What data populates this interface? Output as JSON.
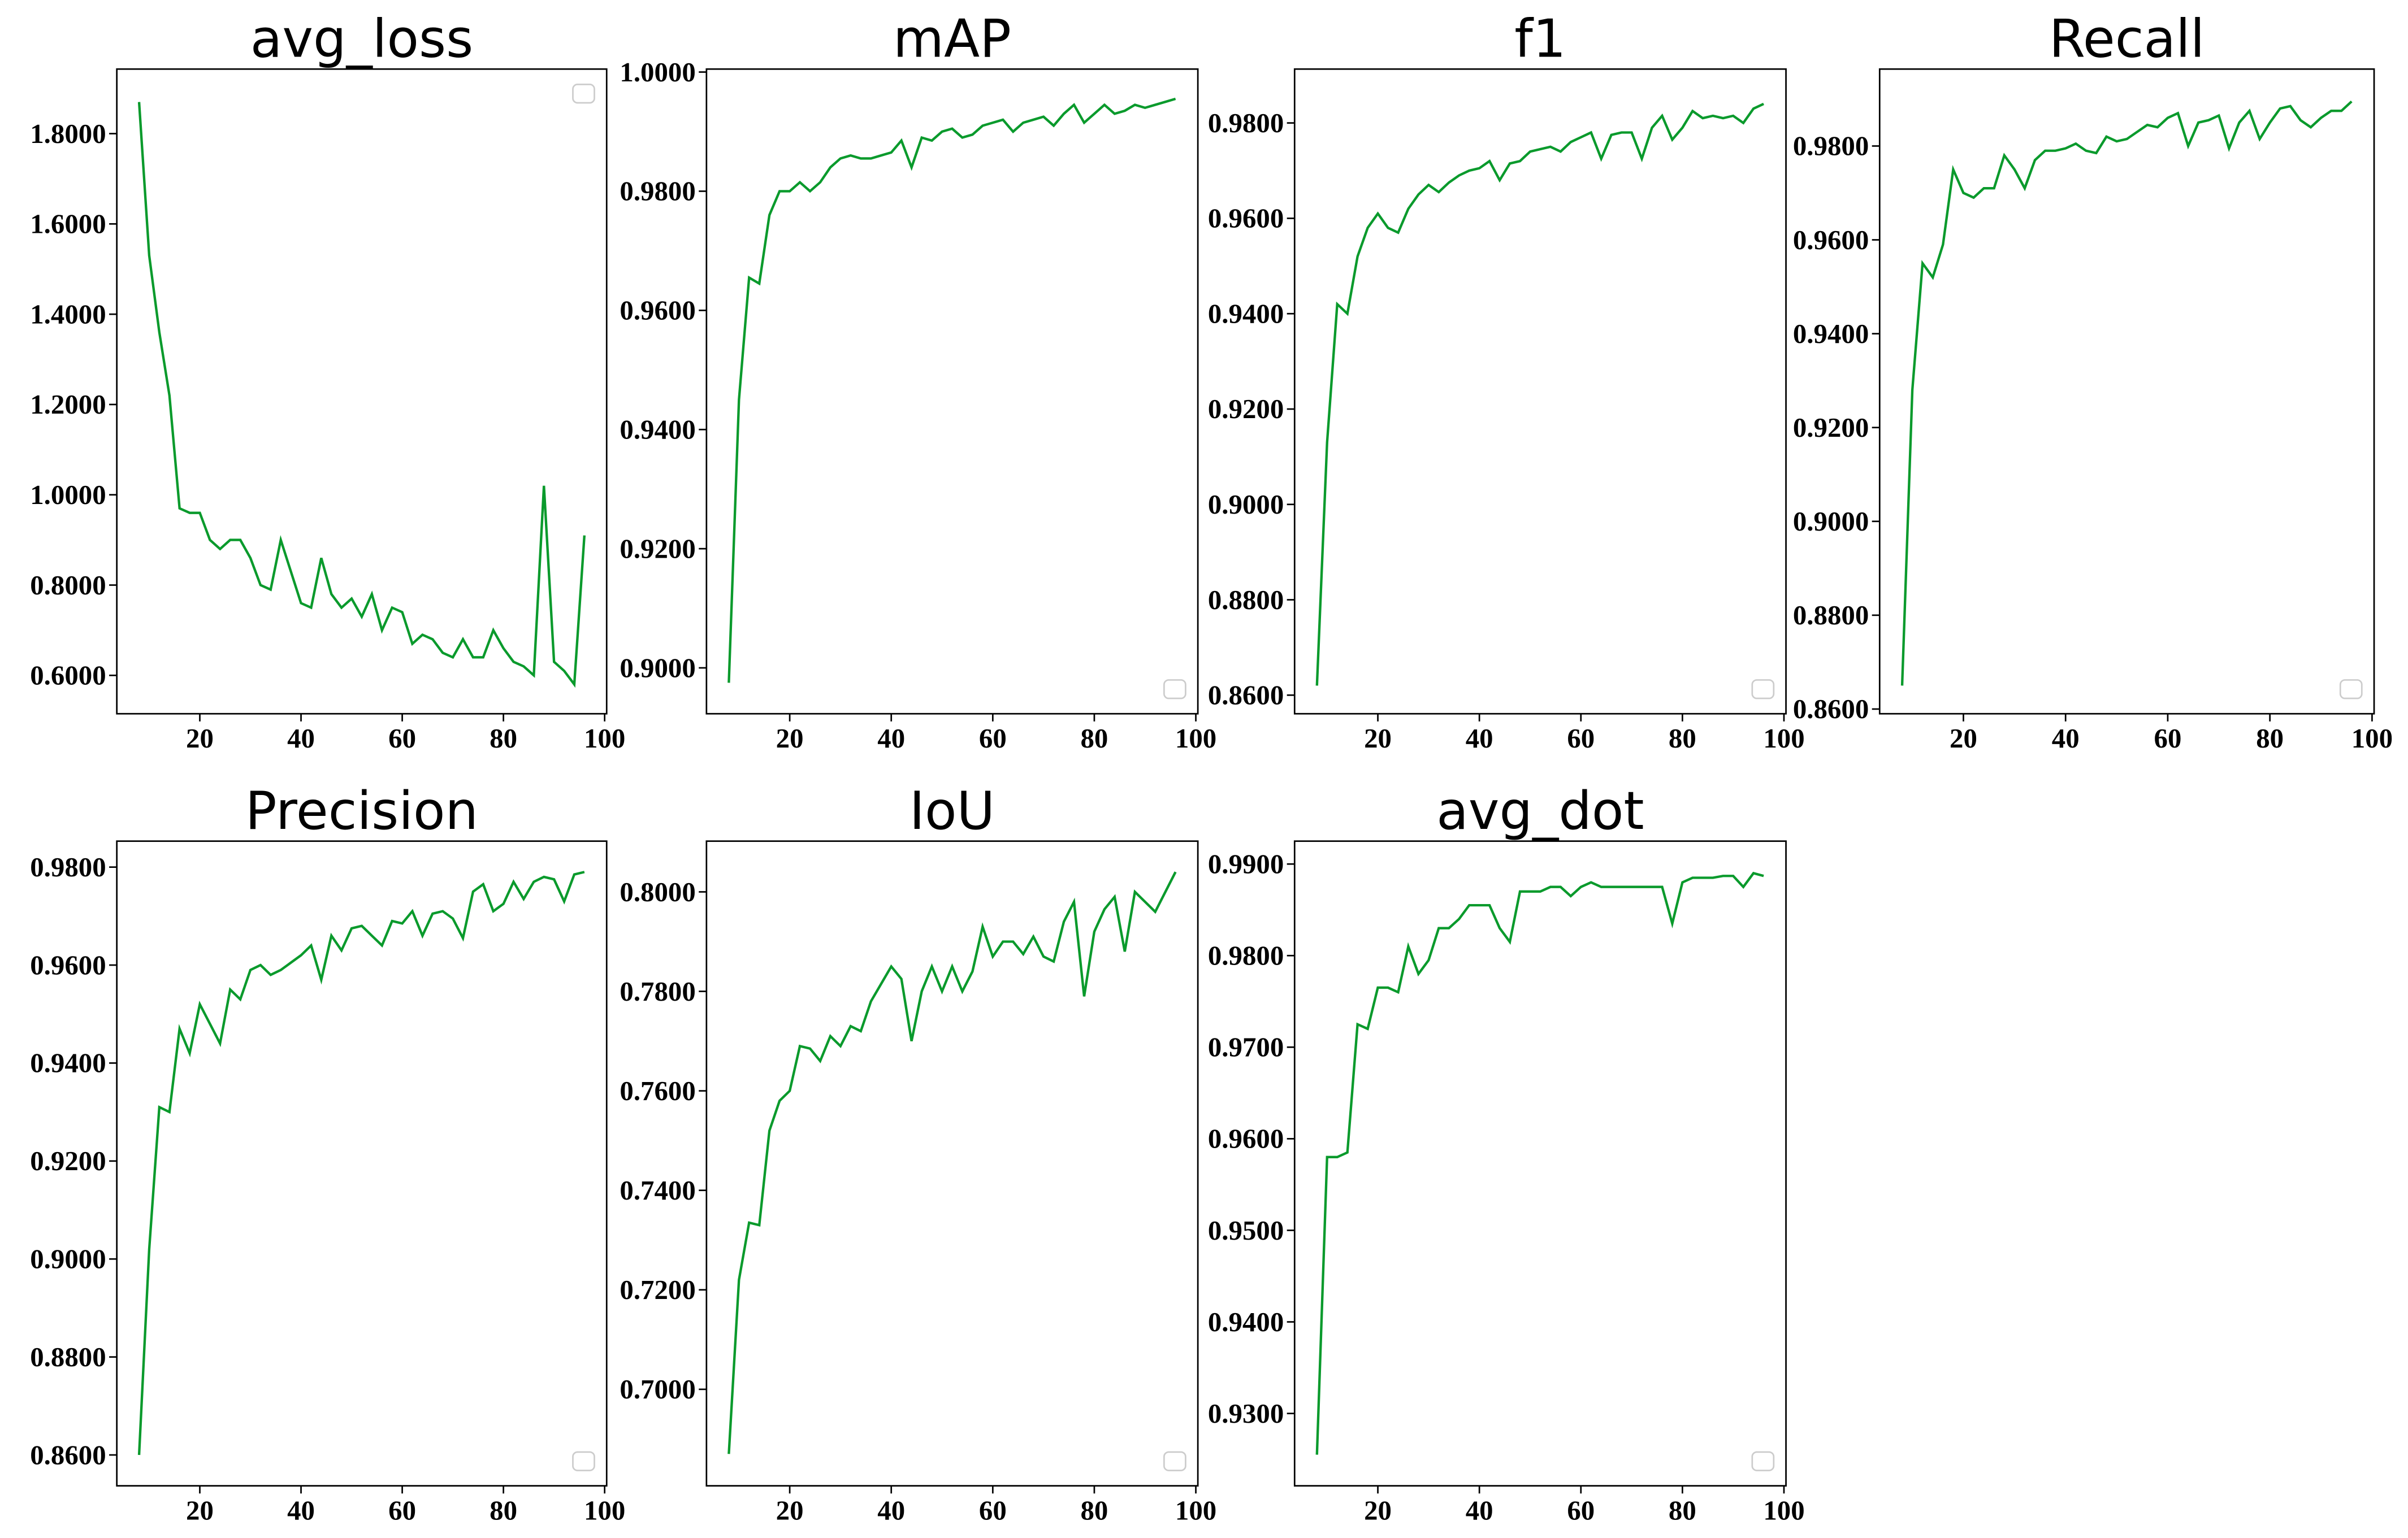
{
  "chart_data": [
    {
      "type": "line",
      "title": "avg_loss",
      "legend": "upper right",
      "x": [
        8,
        10,
        12,
        14,
        16,
        18,
        20,
        22,
        24,
        26,
        28,
        30,
        32,
        34,
        36,
        38,
        40,
        42,
        44,
        46,
        48,
        50,
        52,
        54,
        56,
        58,
        60,
        62,
        64,
        66,
        68,
        70,
        72,
        74,
        76,
        78,
        80,
        82,
        84,
        86,
        88,
        90,
        92,
        94,
        96
      ],
      "series": [
        {
          "color": "#0a9a2c",
          "values": [
            1.87,
            1.53,
            1.36,
            1.22,
            0.97,
            0.96,
            0.96,
            0.9,
            0.88,
            0.9,
            0.9,
            0.86,
            0.8,
            0.79,
            0.9,
            0.83,
            0.76,
            0.75,
            0.86,
            0.78,
            0.75,
            0.77,
            0.73,
            0.78,
            0.7,
            0.75,
            0.74,
            0.67,
            0.69,
            0.68,
            0.65,
            0.64,
            0.68,
            0.64,
            0.64,
            0.7,
            0.66,
            0.63,
            0.62,
            0.6,
            1.02,
            0.63,
            0.61,
            0.58,
            0.91
          ]
        }
      ],
      "xlim": [
        3.6,
        100.4
      ],
      "xticks": [
        20,
        40,
        60,
        80,
        100
      ],
      "ylim": [
        0.515,
        1.943
      ],
      "yticks": [
        {
          "value": 0.6,
          "label": "0.6000"
        },
        {
          "value": 0.8,
          "label": "0.8000"
        },
        {
          "value": 1.0,
          "label": "1.0000"
        },
        {
          "value": 1.2,
          "label": "1.2000"
        },
        {
          "value": 1.4,
          "label": "1.4000"
        },
        {
          "value": 1.6,
          "label": "1.6000"
        },
        {
          "value": 1.8,
          "label": "1.8000"
        }
      ]
    },
    {
      "type": "line",
      "title": "mAP",
      "legend": "lower right",
      "x": [
        8,
        10,
        12,
        14,
        16,
        18,
        20,
        22,
        24,
        26,
        28,
        30,
        32,
        34,
        36,
        38,
        40,
        42,
        44,
        46,
        48,
        50,
        52,
        54,
        56,
        58,
        60,
        62,
        64,
        66,
        68,
        70,
        72,
        74,
        76,
        78,
        80,
        82,
        84,
        86,
        88,
        90,
        92,
        94,
        96
      ],
      "series": [
        {
          "color": "#0a9a2c",
          "values": [
            0.8975,
            0.945,
            0.9655,
            0.9645,
            0.976,
            0.98,
            0.98,
            0.9815,
            0.98,
            0.9815,
            0.984,
            0.9855,
            0.986,
            0.9855,
            0.9855,
            0.986,
            0.9865,
            0.9885,
            0.984,
            0.989,
            0.9885,
            0.99,
            0.9905,
            0.989,
            0.9895,
            0.991,
            0.9915,
            0.992,
            0.99,
            0.9915,
            0.992,
            0.9925,
            0.991,
            0.993,
            0.9945,
            0.9915,
            0.993,
            0.9945,
            0.993,
            0.9935,
            0.9945,
            0.994,
            0.9945,
            0.995,
            0.9955
          ]
        }
      ],
      "xlim": [
        3.6,
        100.4
      ],
      "xticks": [
        20,
        40,
        60,
        80,
        100
      ],
      "ylim": [
        0.8923,
        1.0005
      ],
      "yticks": [
        {
          "value": 0.9,
          "label": "0.9000"
        },
        {
          "value": 0.92,
          "label": "0.9200"
        },
        {
          "value": 0.94,
          "label": "0.9400"
        },
        {
          "value": 0.96,
          "label": "0.9600"
        },
        {
          "value": 0.98,
          "label": "0.9800"
        },
        {
          "value": 1.0,
          "label": "1.0000"
        }
      ]
    },
    {
      "type": "line",
      "title": "f1",
      "legend": "lower right",
      "x": [
        8,
        10,
        12,
        14,
        16,
        18,
        20,
        22,
        24,
        26,
        28,
        30,
        32,
        34,
        36,
        38,
        40,
        42,
        44,
        46,
        48,
        50,
        52,
        54,
        56,
        58,
        60,
        62,
        64,
        66,
        68,
        70,
        72,
        74,
        76,
        78,
        80,
        82,
        84,
        86,
        88,
        90,
        92,
        94,
        96
      ],
      "series": [
        {
          "color": "#0a9a2c",
          "values": [
            0.862,
            0.913,
            0.942,
            0.94,
            0.952,
            0.958,
            0.961,
            0.958,
            0.957,
            0.962,
            0.965,
            0.967,
            0.9655,
            0.9675,
            0.969,
            0.97,
            0.9705,
            0.972,
            0.968,
            0.9715,
            0.972,
            0.974,
            0.9745,
            0.975,
            0.974,
            0.976,
            0.977,
            0.978,
            0.9725,
            0.9775,
            0.978,
            0.978,
            0.9725,
            0.979,
            0.9815,
            0.9765,
            0.979,
            0.9825,
            0.981,
            0.9815,
            0.981,
            0.9815,
            0.98,
            0.983,
            0.984
          ]
        }
      ],
      "xlim": [
        3.6,
        100.4
      ],
      "xticks": [
        20,
        40,
        60,
        80,
        100
      ],
      "ylim": [
        0.8561,
        0.9913
      ],
      "yticks": [
        {
          "value": 0.86,
          "label": "0.8600"
        },
        {
          "value": 0.88,
          "label": "0.8800"
        },
        {
          "value": 0.9,
          "label": "0.9000"
        },
        {
          "value": 0.92,
          "label": "0.9200"
        },
        {
          "value": 0.94,
          "label": "0.9400"
        },
        {
          "value": 0.96,
          "label": "0.9600"
        },
        {
          "value": 0.98,
          "label": "0.9800"
        }
      ]
    },
    {
      "type": "line",
      "title": "Recall",
      "legend": "lower right",
      "x": [
        8,
        10,
        12,
        14,
        16,
        18,
        20,
        22,
        24,
        26,
        28,
        30,
        32,
        34,
        36,
        38,
        40,
        42,
        44,
        46,
        48,
        50,
        52,
        54,
        56,
        58,
        60,
        62,
        64,
        66,
        68,
        70,
        72,
        74,
        76,
        78,
        80,
        82,
        84,
        86,
        88,
        90,
        92,
        94,
        96
      ],
      "series": [
        {
          "color": "#0a9a2c",
          "values": [
            0.865,
            0.928,
            0.955,
            0.952,
            0.959,
            0.975,
            0.97,
            0.969,
            0.971,
            0.971,
            0.978,
            0.975,
            0.971,
            0.977,
            0.979,
            0.979,
            0.9795,
            0.9805,
            0.979,
            0.9785,
            0.982,
            0.981,
            0.9815,
            0.983,
            0.9845,
            0.984,
            0.986,
            0.987,
            0.98,
            0.985,
            0.9855,
            0.9865,
            0.9795,
            0.985,
            0.9875,
            0.9815,
            0.985,
            0.988,
            0.9885,
            0.9855,
            0.984,
            0.986,
            0.9875,
            0.9875,
            0.9895
          ]
        }
      ],
      "xlim": [
        3.6,
        100.4
      ],
      "xticks": [
        20,
        40,
        60,
        80,
        100
      ],
      "ylim": [
        0.859,
        0.9964
      ],
      "yticks": [
        {
          "value": 0.86,
          "label": "0.8600"
        },
        {
          "value": 0.88,
          "label": "0.8800"
        },
        {
          "value": 0.9,
          "label": "0.9000"
        },
        {
          "value": 0.92,
          "label": "0.9200"
        },
        {
          "value": 0.94,
          "label": "0.9400"
        },
        {
          "value": 0.96,
          "label": "0.9600"
        },
        {
          "value": 0.98,
          "label": "0.9800"
        }
      ]
    },
    {
      "type": "line",
      "title": "Precision",
      "legend": "lower right",
      "x": [
        8,
        10,
        12,
        14,
        16,
        18,
        20,
        22,
        24,
        26,
        28,
        30,
        32,
        34,
        36,
        38,
        40,
        42,
        44,
        46,
        48,
        50,
        52,
        54,
        56,
        58,
        60,
        62,
        64,
        66,
        68,
        70,
        72,
        74,
        76,
        78,
        80,
        82,
        84,
        86,
        88,
        90,
        92,
        94,
        96
      ],
      "series": [
        {
          "color": "#0a9a2c",
          "values": [
            0.86,
            0.902,
            0.931,
            0.93,
            0.947,
            0.942,
            0.952,
            0.948,
            0.944,
            0.955,
            0.953,
            0.959,
            0.96,
            0.958,
            0.959,
            0.9605,
            0.962,
            0.964,
            0.957,
            0.966,
            0.963,
            0.9675,
            0.968,
            0.966,
            0.964,
            0.969,
            0.9685,
            0.971,
            0.966,
            0.9705,
            0.971,
            0.9695,
            0.9655,
            0.975,
            0.9765,
            0.971,
            0.9725,
            0.977,
            0.9735,
            0.977,
            0.978,
            0.9775,
            0.973,
            0.9785,
            0.979
          ]
        }
      ],
      "xlim": [
        3.6,
        100.4
      ],
      "xticks": [
        20,
        40,
        60,
        80,
        100
      ],
      "ylim": [
        0.8537,
        0.9853
      ],
      "yticks": [
        {
          "value": 0.86,
          "label": "0.8600"
        },
        {
          "value": 0.88,
          "label": "0.8800"
        },
        {
          "value": 0.9,
          "label": "0.9000"
        },
        {
          "value": 0.92,
          "label": "0.9200"
        },
        {
          "value": 0.94,
          "label": "0.9400"
        },
        {
          "value": 0.96,
          "label": "0.9600"
        },
        {
          "value": 0.98,
          "label": "0.9800"
        }
      ]
    },
    {
      "type": "line",
      "title": "IoU",
      "legend": "lower right",
      "x": [
        8,
        10,
        12,
        14,
        16,
        18,
        20,
        22,
        24,
        26,
        28,
        30,
        32,
        34,
        36,
        38,
        40,
        42,
        44,
        46,
        48,
        50,
        52,
        54,
        56,
        58,
        60,
        62,
        64,
        66,
        68,
        70,
        72,
        74,
        76,
        78,
        80,
        82,
        84,
        86,
        88,
        90,
        92,
        94,
        96
      ],
      "series": [
        {
          "color": "#0a9a2c",
          "values": [
            0.687,
            0.722,
            0.7335,
            0.733,
            0.752,
            0.758,
            0.76,
            0.769,
            0.7685,
            0.766,
            0.771,
            0.769,
            0.773,
            0.772,
            0.778,
            0.7815,
            0.785,
            0.7825,
            0.77,
            0.78,
            0.785,
            0.78,
            0.785,
            0.78,
            0.784,
            0.793,
            0.787,
            0.79,
            0.79,
            0.7875,
            0.791,
            0.787,
            0.786,
            0.794,
            0.798,
            0.779,
            0.792,
            0.7965,
            0.799,
            0.788,
            0.8,
            0.798,
            0.796,
            0.8,
            0.804
          ]
        }
      ],
      "xlim": [
        3.6,
        100.4
      ],
      "xticks": [
        20,
        40,
        60,
        80,
        100
      ],
      "ylim": [
        0.6806,
        0.8102
      ],
      "yticks": [
        {
          "value": 0.7,
          "label": "0.7000"
        },
        {
          "value": 0.72,
          "label": "0.7200"
        },
        {
          "value": 0.74,
          "label": "0.7400"
        },
        {
          "value": 0.76,
          "label": "0.7600"
        },
        {
          "value": 0.78,
          "label": "0.7800"
        },
        {
          "value": 0.8,
          "label": "0.8000"
        }
      ]
    },
    {
      "type": "line",
      "title": "avg_dot",
      "legend": "lower right",
      "x": [
        8,
        10,
        12,
        14,
        16,
        18,
        20,
        22,
        24,
        26,
        28,
        30,
        32,
        34,
        36,
        38,
        40,
        42,
        44,
        46,
        48,
        50,
        52,
        54,
        56,
        58,
        60,
        62,
        64,
        66,
        68,
        70,
        72,
        74,
        76,
        78,
        80,
        82,
        84,
        86,
        88,
        90,
        92,
        94,
        96
      ],
      "series": [
        {
          "color": "#0a9a2c",
          "values": [
            0.9255,
            0.958,
            0.958,
            0.9585,
            0.9725,
            0.972,
            0.9765,
            0.9765,
            0.976,
            0.981,
            0.978,
            0.9795,
            0.983,
            0.983,
            0.984,
            0.9855,
            0.9855,
            0.9855,
            0.983,
            0.9815,
            0.987,
            0.987,
            0.987,
            0.9875,
            0.9875,
            0.9865,
            0.9875,
            0.988,
            0.9875,
            0.9875,
            0.9875,
            0.9875,
            0.9875,
            0.9875,
            0.9875,
            0.9835,
            0.988,
            0.9885,
            0.9885,
            0.9885,
            0.9887,
            0.9887,
            0.9875,
            0.989,
            0.9887
          ]
        }
      ],
      "xlim": [
        3.6,
        100.4
      ],
      "xticks": [
        20,
        40,
        60,
        80,
        100
      ],
      "ylim": [
        0.9221,
        0.9925
      ],
      "yticks": [
        {
          "value": 0.93,
          "label": "0.9300"
        },
        {
          "value": 0.94,
          "label": "0.9400"
        },
        {
          "value": 0.95,
          "label": "0.9500"
        },
        {
          "value": 0.96,
          "label": "0.9600"
        },
        {
          "value": 0.97,
          "label": "0.9700"
        },
        {
          "value": 0.98,
          "label": "0.9800"
        },
        {
          "value": 0.99,
          "label": "0.9900"
        }
      ]
    }
  ]
}
